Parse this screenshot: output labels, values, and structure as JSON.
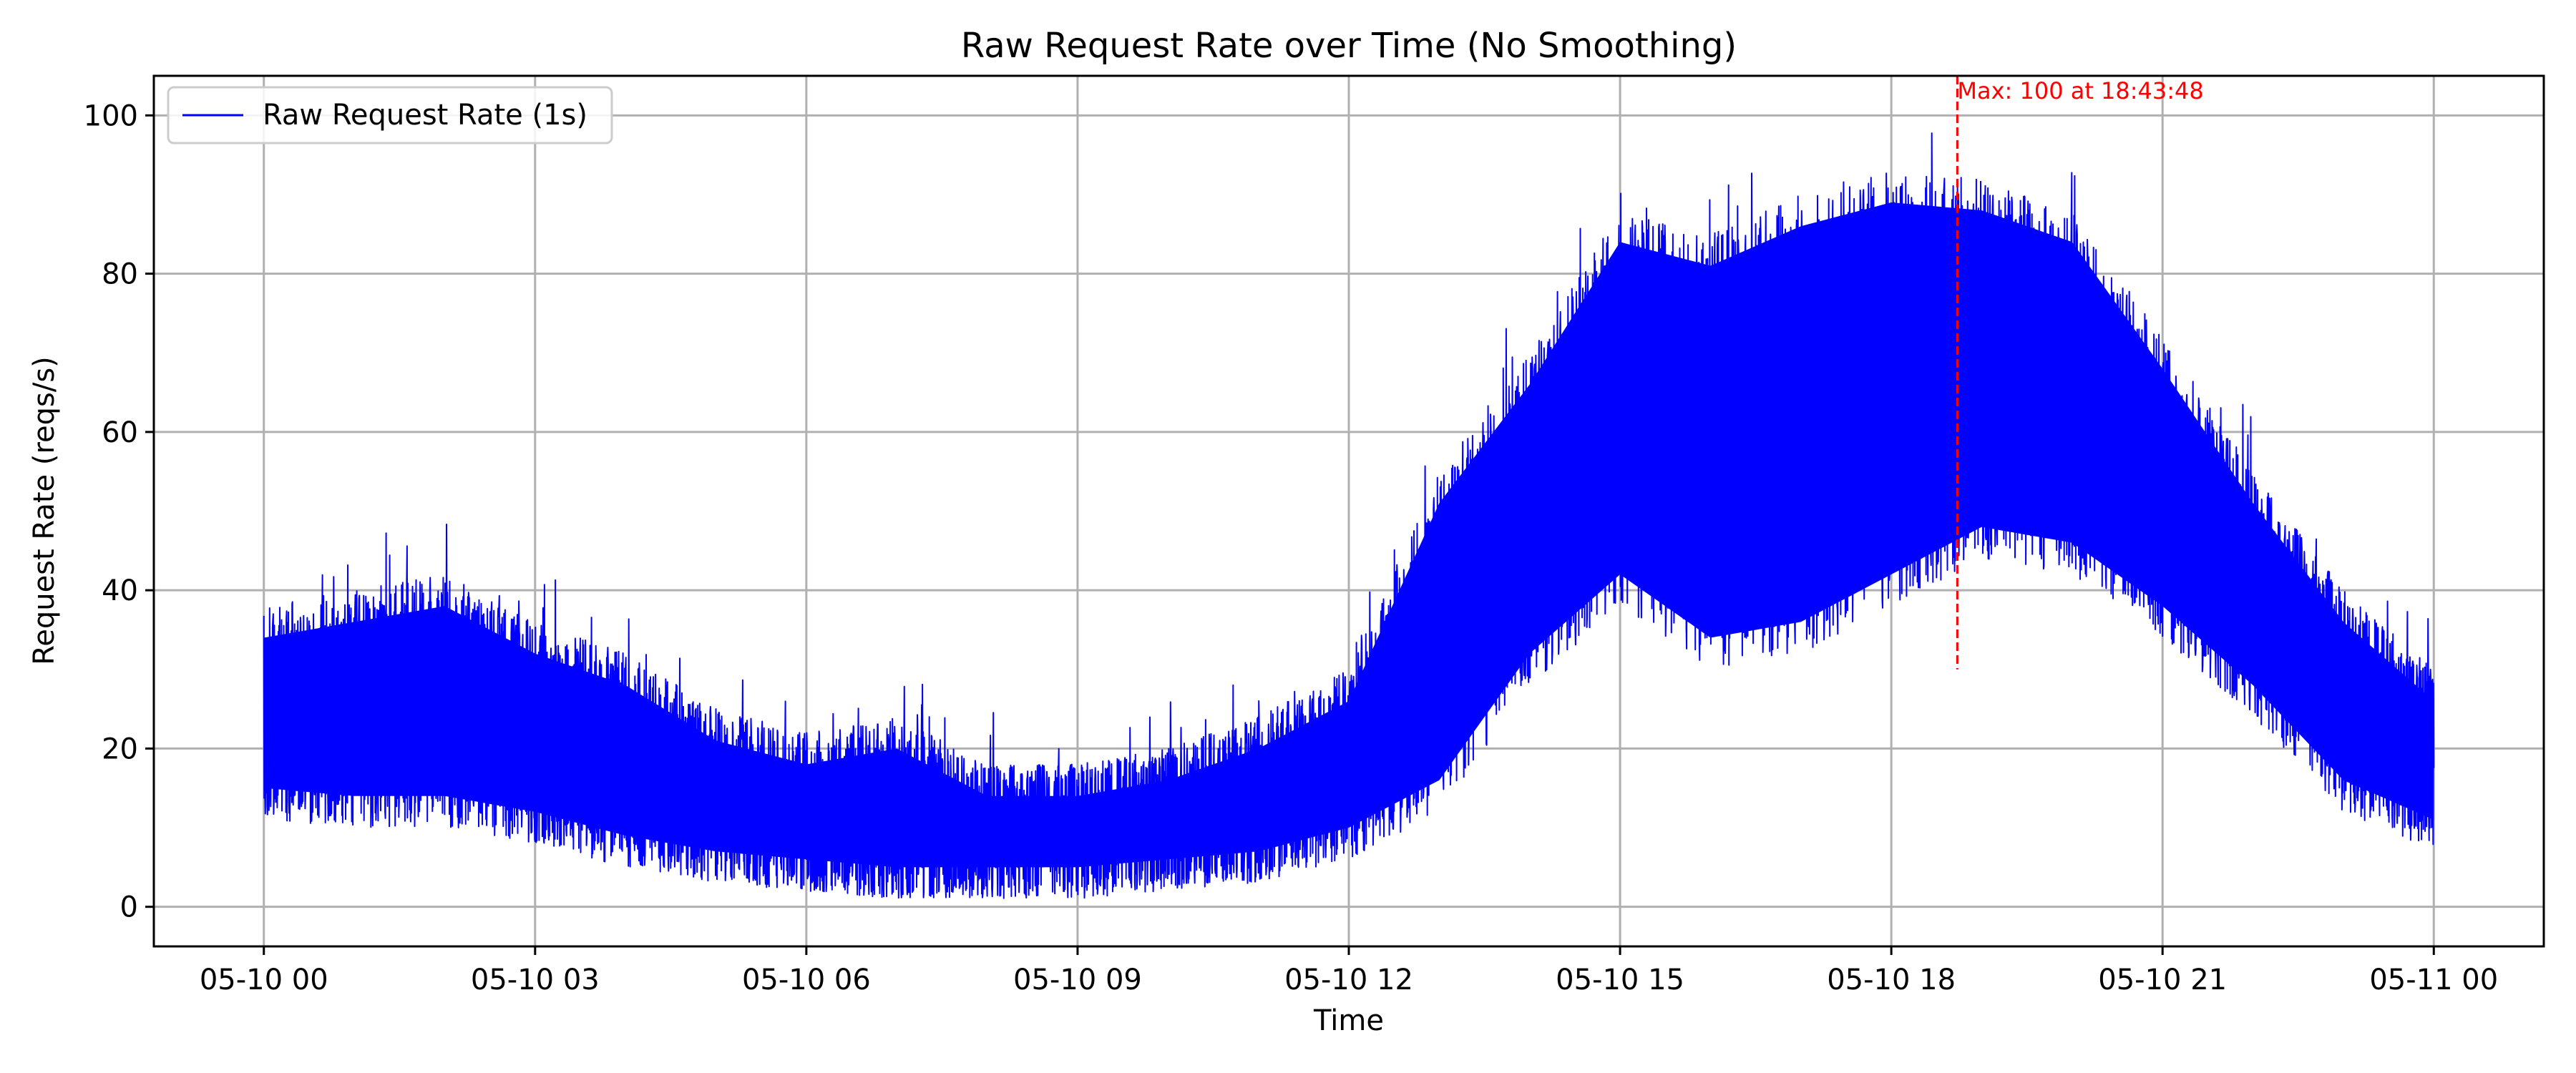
{
  "chart_data": {
    "type": "line",
    "title": "Raw Request Rate over Time (No Smoothing)",
    "xlabel": "Time",
    "ylabel": "Request Rate (reqs/s)",
    "x_range": [
      "05-10 00:00",
      "05-11 00:00"
    ],
    "xlim": [
      "05-09 22:47",
      "05-11 01:13"
    ],
    "ylim": [
      -5,
      105
    ],
    "x_ticks": [
      "05-10 00",
      "05-10 03",
      "05-10 06",
      "05-10 09",
      "05-10 12",
      "05-10 15",
      "05-10 18",
      "05-10 21",
      "05-11 00"
    ],
    "y_ticks": [
      "0",
      "20",
      "40",
      "60",
      "80",
      "100"
    ],
    "grid": true,
    "legend_position": "upper left",
    "series": [
      {
        "name": "Raw Request Rate (1s)",
        "color": "#0000ff",
        "sampling": "1s raw samples, visually dense; summarized as hourly envelope",
        "envelope_hours": [
          0,
          1,
          2,
          3,
          4,
          5,
          6,
          7,
          8,
          9,
          10,
          11,
          12,
          13,
          14,
          15,
          16,
          17,
          18,
          19,
          20,
          21,
          22,
          23,
          24
        ],
        "envelope_low": [
          11,
          10,
          10,
          8,
          5,
          3,
          2,
          1,
          1,
          1,
          2,
          3,
          6,
          12,
          28,
          38,
          30,
          32,
          38,
          44,
          42,
          34,
          24,
          12,
          7
        ],
        "envelope_high": [
          38,
          40,
          42,
          36,
          32,
          25,
          22,
          24,
          18,
          18,
          20,
          24,
          30,
          55,
          70,
          88,
          85,
          90,
          93,
          92,
          88,
          72,
          55,
          40,
          30
        ]
      }
    ],
    "annotations": [
      {
        "type": "vline",
        "x": "05-10 18:43:48",
        "x_hours": 18.73,
        "style": "dashed",
        "color": "#ff0000",
        "text": "Max: 100 at 18:43:48"
      }
    ]
  }
}
